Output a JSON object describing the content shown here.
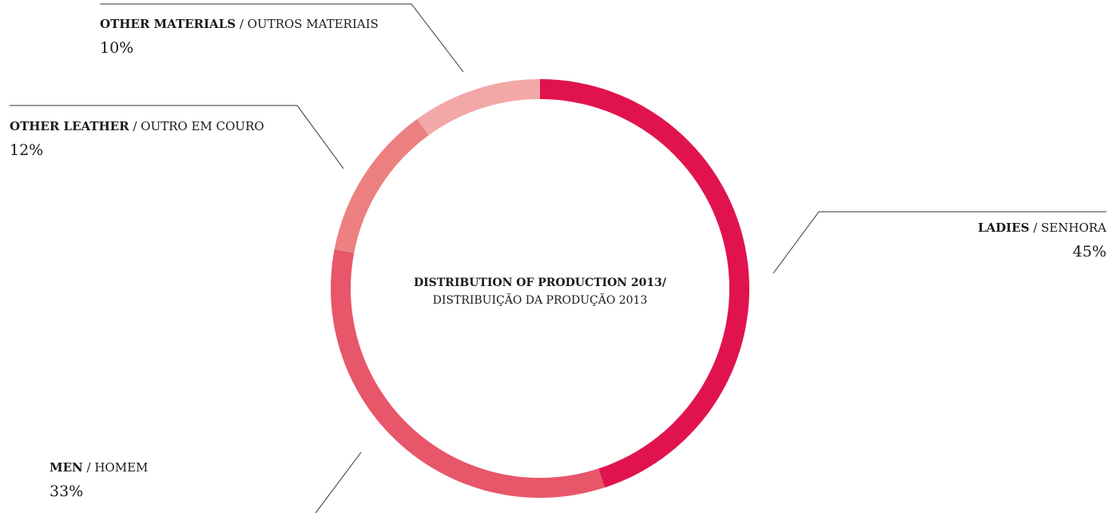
{
  "chart_data": {
    "type": "donut",
    "title": "DISTRIBUTION OF PRODUCTION 2013/",
    "subtitle": "DISTRIBUIÇÃO DA PRODUÇÃO 2013",
    "categories": [
      "LADIES / SENHORA",
      "MEN / HOMEM",
      "OTHER LEATHER / OUTRO EM COURO",
      "OTHER MATERIALS / OUTROS MATERIAIS"
    ],
    "values": [
      45,
      33,
      12,
      10
    ],
    "value_labels": [
      "45%",
      "33%",
      "12%",
      "10%"
    ],
    "colors": [
      "#e0134f",
      "#e8566a",
      "#ec8080",
      "#f3a8a8"
    ]
  }
}
